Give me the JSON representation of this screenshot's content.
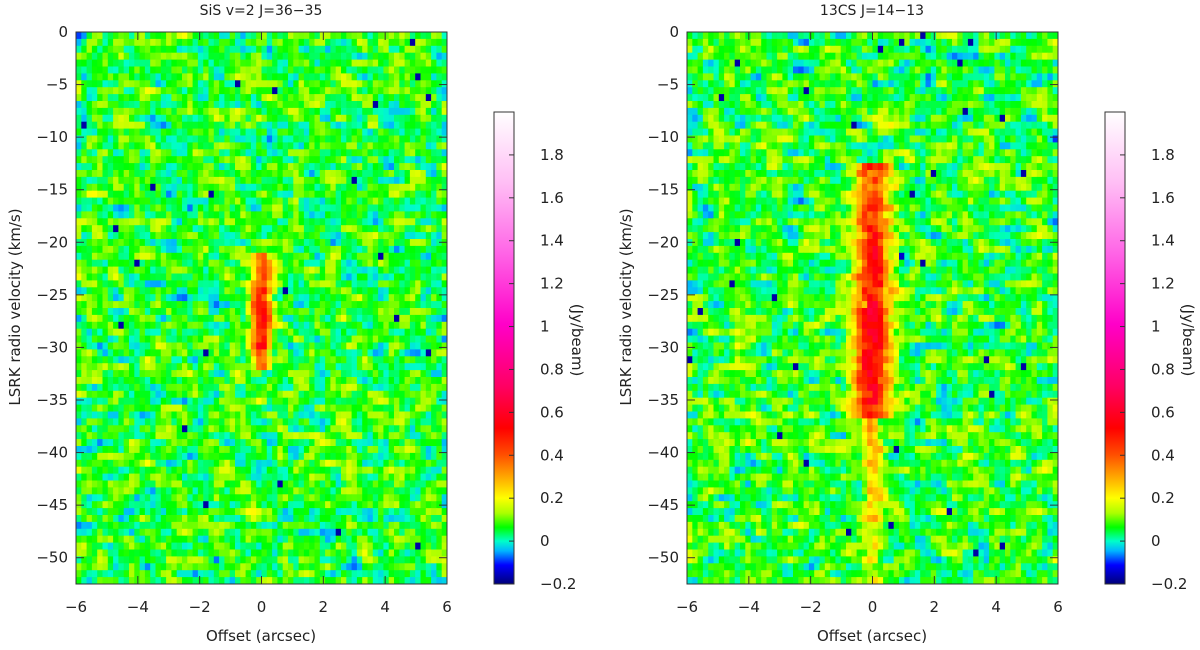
{
  "chart_data": [
    {
      "type": "heatmap",
      "title": "SiS v=2 J=36−35",
      "xlabel": "Offset (arcsec)",
      "ylabel": "LSRK radio velocity  (km/s)",
      "xlim": [
        -6,
        6
      ],
      "ylim": [
        -52.5,
        0
      ],
      "xticks": [
        -6,
        -4,
        -2,
        0,
        2,
        4,
        6
      ],
      "yticks": [
        0,
        -5,
        -10,
        -15,
        -20,
        -25,
        -30,
        -35,
        -40,
        -45,
        -50
      ],
      "xtick_labels": [
        "−6",
        "−4",
        "−2",
        "0",
        "2",
        "4",
        "6"
      ],
      "ytick_labels": [
        "0",
        "−5",
        "−10",
        "−15",
        "−20",
        "−25",
        "−30",
        "−35",
        "−40",
        "−45",
        "−50"
      ],
      "colorbar": {
        "label": "(Jy/beam)",
        "range": [
          -0.2,
          2.0
        ],
        "ticks": [
          -0.2,
          0,
          0.2,
          0.4,
          0.6,
          0.8,
          1,
          1.2,
          1.4,
          1.6,
          1.8
        ],
        "tick_labels": [
          "−0.2",
          "0",
          "0.2",
          "0.4",
          "0.6",
          "0.8",
          "1",
          "1.2",
          "1.4",
          "1.6",
          "1.8"
        ]
      },
      "emission_features": [
        {
          "offset": 0.0,
          "v_range": [
            -32,
            -21
          ],
          "peak_velocity": -26.5,
          "peak_intensity": 0.45,
          "width_arcsec": 0.5
        }
      ]
    },
    {
      "type": "heatmap",
      "title": "13CS J=14−13",
      "xlabel": "Offset (arcsec)",
      "ylabel": "LSRK radio velocity  (km/s)",
      "xlim": [
        -6,
        6
      ],
      "ylim": [
        -52.5,
        0
      ],
      "xticks": [
        -6,
        -4,
        -2,
        0,
        2,
        4,
        6
      ],
      "yticks": [
        0,
        -5,
        -10,
        -15,
        -20,
        -25,
        -30,
        -35,
        -40,
        -45,
        -50
      ],
      "xtick_labels": [
        "−6",
        "−4",
        "−2",
        "0",
        "2",
        "4",
        "6"
      ],
      "ytick_labels": [
        "0",
        "−5",
        "−10",
        "−15",
        "−20",
        "−25",
        "−30",
        "−35",
        "−40",
        "−45",
        "−50"
      ],
      "colorbar": {
        "label": "(Jy/beam)",
        "range": [
          -0.2,
          2.0
        ],
        "ticks": [
          -0.2,
          0,
          0.2,
          0.4,
          0.6,
          0.8,
          1,
          1.2,
          1.4,
          1.6,
          1.8
        ],
        "tick_labels": [
          "−0.2",
          "0",
          "0.2",
          "0.4",
          "0.6",
          "0.8",
          "1",
          "1.2",
          "1.4",
          "1.6",
          "1.8"
        ]
      },
      "emission_features": [
        {
          "offset": 0.0,
          "v_range": [
            -37,
            -12.5
          ],
          "peak_velocity": -28,
          "peak_intensity": 0.5,
          "width_arcsec": 0.9
        },
        {
          "offset": 0.0,
          "v_range": [
            -52.5,
            -37
          ],
          "peak_velocity": -40,
          "peak_intensity": 0.22,
          "width_arcsec": 0.5
        }
      ]
    }
  ]
}
